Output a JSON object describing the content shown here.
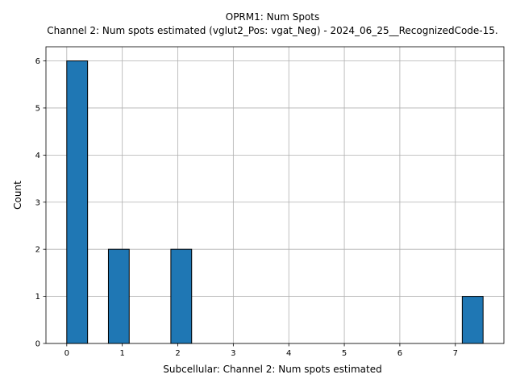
{
  "chart_data": {
    "type": "bar",
    "title": "OPRM1: Num Spots",
    "subtitle": "Channel 2: Num spots estimated (vglut2_Pos: vgat_Neg) - 2024_06_25__RecognizedCode-15.",
    "xlabel": "Subcellular: Channel 2: Num spots estimated",
    "ylabel": "Count",
    "xlim": [
      -0.375,
      7.875
    ],
    "ylim": [
      0,
      6.3
    ],
    "xticks": [
      0,
      1,
      2,
      3,
      4,
      5,
      6,
      7
    ],
    "yticks": [
      0,
      1,
      2,
      3,
      4,
      5,
      6
    ],
    "grid": true,
    "bar_color": "#1f77b4",
    "edge_color": "#000000",
    "bars": [
      {
        "x0": 0.0,
        "x1": 0.375,
        "count": 6
      },
      {
        "x0": 0.75,
        "x1": 1.125,
        "count": 2
      },
      {
        "x0": 1.875,
        "x1": 2.25,
        "count": 2
      },
      {
        "x0": 7.125,
        "x1": 7.5,
        "count": 1
      }
    ]
  }
}
